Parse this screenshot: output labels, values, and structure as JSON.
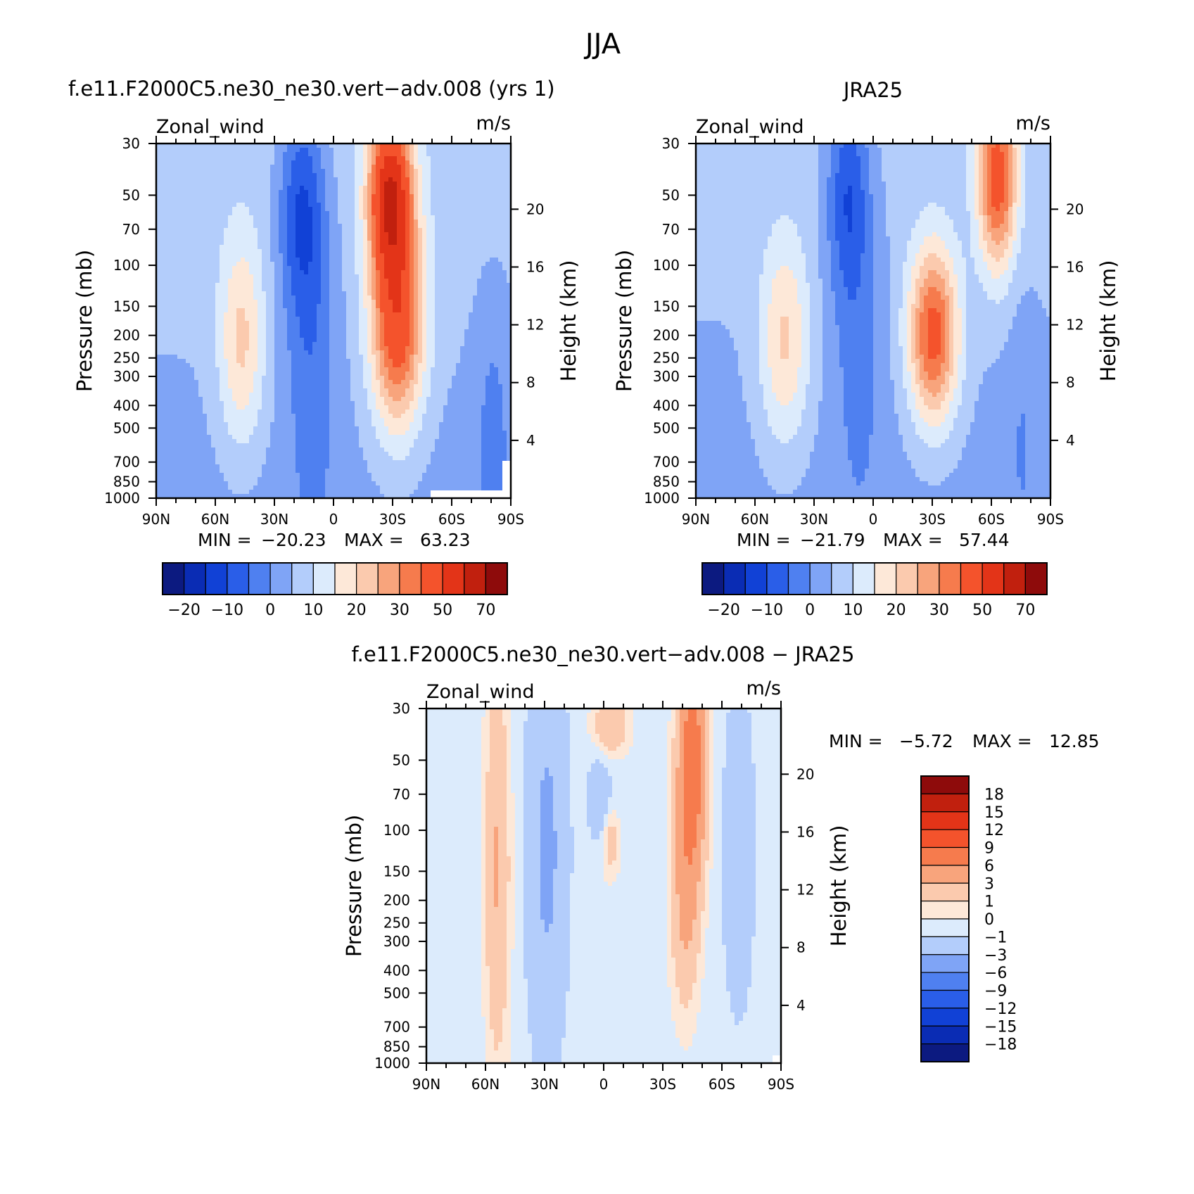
{
  "figure_title": "JJA",
  "colors": {
    "main_palette": [
      "#0c1a80",
      "#0a2cb4",
      "#1141d6",
      "#2a5ee8",
      "#4f80f0",
      "#7fa4f6",
      "#b3cdfb",
      "#dcebfc",
      "#fde8d8",
      "#fbcaae",
      "#f8a47c",
      "#f67b4d",
      "#f4532c",
      "#e33418",
      "#c1200e",
      "#8e0b0b"
    ],
    "diff_palette": [
      "#0c1a80",
      "#0a2cb4",
      "#1141d6",
      "#2a5ee8",
      "#4f80f0",
      "#7fa4f6",
      "#b3cdfb",
      "#dcebfc",
      "#fde8d8",
      "#fbcaae",
      "#f8a47c",
      "#f67b4d",
      "#f4532c",
      "#e33418",
      "#c1200e",
      "#8e0b0b"
    ]
  },
  "chart_data": [
    {
      "type": "heatmap",
      "panel_title": "f.e11.F2000C5.ne30_ne30.vert−adv.008 (yrs 1)",
      "left_string": "Zonal_wind",
      "right_string": "m/s",
      "ylabel": "Pressure (mb)",
      "y2label": "Height (km)",
      "x_ticks": [
        "90N",
        "60N",
        "30N",
        "0",
        "30S",
        "60S",
        "90S"
      ],
      "y_ticks": [
        "30",
        "50",
        "70",
        "100",
        "150",
        "200",
        "250",
        "300",
        "400",
        "500",
        "700",
        "850",
        "1000"
      ],
      "y2_ticks": [
        "20",
        "16",
        "12",
        "8",
        "4"
      ],
      "stats": {
        "min_label": "MIN =",
        "min": "−20.23",
        "max_label": "MAX =",
        "max": "63.23"
      },
      "colorbar_labels": [
        "−20",
        "−10",
        "0",
        "10",
        "20",
        "30",
        "50",
        "70"
      ],
      "field": "model",
      "min": -20.23,
      "max": 63.23
    },
    {
      "type": "heatmap",
      "panel_title": "JRA25",
      "left_string": "Zonal_wind",
      "right_string": "m/s",
      "ylabel": "Pressure (mb)",
      "y2label": "Height (km)",
      "x_ticks": [
        "90N",
        "60N",
        "30N",
        "0",
        "30S",
        "60S",
        "90S"
      ],
      "y_ticks": [
        "30",
        "50",
        "70",
        "100",
        "150",
        "200",
        "250",
        "300",
        "400",
        "500",
        "700",
        "850",
        "1000"
      ],
      "y2_ticks": [
        "20",
        "16",
        "12",
        "8",
        "4"
      ],
      "stats": {
        "min_label": "MIN =",
        "min": "−21.79",
        "max_label": "MAX =",
        "max": "57.44"
      },
      "colorbar_labels": [
        "−20",
        "−10",
        "0",
        "10",
        "20",
        "30",
        "50",
        "70"
      ],
      "field": "obs",
      "min": -21.79,
      "max": 57.44
    },
    {
      "type": "heatmap",
      "panel_title": "f.e11.F2000C5.ne30_ne30.vert−adv.008 − JRA25",
      "left_string": "Zonal_wind",
      "right_string": "m/s",
      "ylabel": "Pressure (mb)",
      "y2label": "Height (km)",
      "x_ticks": [
        "90N",
        "60N",
        "30N",
        "0",
        "30S",
        "60S",
        "90S"
      ],
      "y_ticks": [
        "30",
        "50",
        "70",
        "100",
        "150",
        "200",
        "250",
        "300",
        "400",
        "500",
        "700",
        "850",
        "1000"
      ],
      "y2_ticks": [
        "20",
        "16",
        "12",
        "8",
        "4"
      ],
      "stats": {
        "min_label": "MIN =",
        "min": "−5.72",
        "max_label": "MAX =",
        "max": "12.85"
      },
      "colorbar_labels": [
        "18",
        "15",
        "12",
        "9",
        "6",
        "3",
        "1",
        "0",
        "−1",
        "−3",
        "−6",
        "−9",
        "−12",
        "−15",
        "−18"
      ],
      "field": "diff",
      "min": -5.72,
      "max": 12.85
    }
  ]
}
